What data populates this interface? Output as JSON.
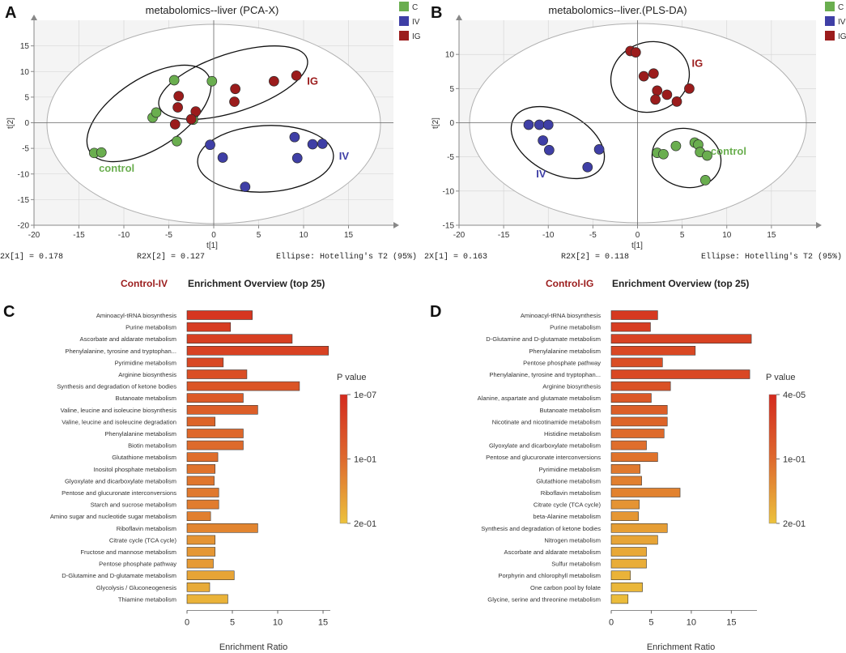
{
  "colors": {
    "control": "#6aae4f",
    "iv": "#3f3fa6",
    "ig": "#9b1c1c",
    "ellipse": "#b0b0b0",
    "grid": "#c8c8c8",
    "panel_title": "#9b1c1c",
    "bar_high": "#d42a1e",
    "bar_low": "#ecc23c",
    "axis": "#888888"
  },
  "chart_data": [
    {
      "id": "A",
      "letter": "A",
      "type": "scatter",
      "title": "metabolomics--liver (PCA-X)",
      "xlabel": "t[1]",
      "ylabel": "t[2]",
      "xlim": [
        -20,
        20
      ],
      "ylim": [
        -20,
        20
      ],
      "xticks": [
        -20,
        -15,
        -10,
        -5,
        0,
        5,
        10,
        15
      ],
      "yticks": [
        -20,
        -15,
        -10,
        -5,
        0,
        5,
        10,
        15
      ],
      "legend": [
        {
          "key": "C",
          "label": "C",
          "color": "#6aae4f"
        },
        {
          "key": "IV",
          "label": "IV",
          "color": "#3f3fa6"
        },
        {
          "key": "IG",
          "label": "IG",
          "color": "#9b1c1c"
        }
      ],
      "footer": {
        "r2x1": "2X[1] = 0.178",
        "r2x2": "R2X[2] = 0.127",
        "ellipse": "Ellipse: Hotelling's T2 (95%)"
      },
      "series": [
        {
          "name": "C",
          "color": "#6aae4f",
          "points": [
            [
              -13.3,
              -5.9
            ],
            [
              -12.5,
              -5.8
            ],
            [
              -6.8,
              1.0
            ],
            [
              -6.4,
              2.0
            ],
            [
              -4.4,
              8.3
            ],
            [
              -4.1,
              -3.6
            ],
            [
              -0.2,
              8.1
            ],
            [
              -2.3,
              0.6
            ]
          ]
        },
        {
          "name": "IV",
          "color": "#3f3fa6",
          "points": [
            [
              -0.4,
              -4.3
            ],
            [
              1.0,
              -6.8
            ],
            [
              3.5,
              -12.5
            ],
            [
              9.0,
              -2.8
            ],
            [
              9.3,
              -6.9
            ],
            [
              11.0,
              -4.2
            ],
            [
              12.1,
              -4.1
            ]
          ]
        },
        {
          "name": "IG",
          "color": "#9b1c1c",
          "points": [
            [
              -3.9,
              5.2
            ],
            [
              -4.0,
              3.0
            ],
            [
              -4.3,
              -0.3
            ],
            [
              -2.0,
              2.2
            ],
            [
              -2.5,
              0.7
            ],
            [
              2.4,
              6.6
            ],
            [
              2.3,
              4.1
            ],
            [
              6.7,
              8.1
            ],
            [
              9.2,
              9.2
            ]
          ]
        }
      ],
      "group_labels": [
        {
          "text": "control",
          "x": -10.8,
          "y": -9.6,
          "color": "#6aae4f"
        },
        {
          "text": "IG",
          "x": 11.0,
          "y": 7.4,
          "color": "#9b1c1c"
        },
        {
          "text": "IV",
          "x": 14.5,
          "y": -7.2,
          "color": "#3f3fa6"
        }
      ]
    },
    {
      "id": "B",
      "letter": "B",
      "type": "scatter",
      "title": "metabolomics--liver.(PLS-DA)",
      "xlabel": "t[1]",
      "ylabel": "t[2]",
      "xlim": [
        -20,
        20
      ],
      "ylim": [
        -15,
        15
      ],
      "xticks": [
        -20,
        -15,
        -10,
        -5,
        0,
        5,
        10,
        15
      ],
      "yticks": [
        -15,
        -10,
        -5,
        0,
        5,
        10
      ],
      "legend": [
        {
          "key": "C",
          "label": "C",
          "color": "#6aae4f"
        },
        {
          "key": "IV",
          "label": "IV",
          "color": "#3f3fa6"
        },
        {
          "key": "IG",
          "label": "IG",
          "color": "#9b1c1c"
        }
      ],
      "footer": {
        "r2x1": "2X[1] = 0.163",
        "r2x2": "R2X[2] = 0.118",
        "ellipse": "Ellipse: Hotelling's T2 (95%)"
      },
      "series": [
        {
          "name": "C",
          "color": "#6aae4f",
          "points": [
            [
              2.2,
              -4.4
            ],
            [
              2.9,
              -4.6
            ],
            [
              4.3,
              -3.4
            ],
            [
              6.4,
              -2.9
            ],
            [
              6.8,
              -3.2
            ],
            [
              7.0,
              -4.3
            ],
            [
              7.8,
              -4.8
            ],
            [
              7.6,
              -8.4
            ]
          ]
        },
        {
          "name": "IV",
          "color": "#3f3fa6",
          "points": [
            [
              -12.2,
              -0.3
            ],
            [
              -11.0,
              -0.3
            ],
            [
              -10.0,
              -0.3
            ],
            [
              -10.6,
              -2.6
            ],
            [
              -9.9,
              -4.0
            ],
            [
              -4.3,
              -3.9
            ],
            [
              -5.6,
              -6.5
            ]
          ]
        },
        {
          "name": "IG",
          "color": "#9b1c1c",
          "points": [
            [
              -0.8,
              10.5
            ],
            [
              -0.2,
              10.3
            ],
            [
              0.7,
              6.8
            ],
            [
              1.8,
              7.2
            ],
            [
              2.2,
              4.7
            ],
            [
              2.0,
              3.4
            ],
            [
              3.3,
              4.1
            ],
            [
              4.4,
              3.1
            ],
            [
              5.8,
              5.0
            ]
          ]
        }
      ],
      "group_labels": [
        {
          "text": "IG",
          "x": 6.7,
          "y": 8.2,
          "color": "#9b1c1c"
        },
        {
          "text": "control",
          "x": 10.2,
          "y": -4.7,
          "color": "#6aae4f"
        },
        {
          "text": "IV",
          "x": -10.8,
          "y": -8.0,
          "color": "#3f3fa6"
        }
      ]
    },
    {
      "id": "C",
      "letter": "C",
      "type": "bar",
      "orientation": "horizontal",
      "group_title": "Control-IV",
      "title": "Enrichment Overview (top 25)",
      "xlabel": "Enrichment Ratio",
      "xlim": [
        0,
        15.8
      ],
      "xticks": [
        0,
        5,
        10,
        15
      ],
      "colorbar": {
        "title": "P value",
        "labels": [
          "1e-07",
          "1e-01",
          "2e-01"
        ]
      },
      "categories": [
        "Aminoacyl-tRNA biosynthesis",
        "Purine metabolism",
        "Ascorbate and aldarate metabolism",
        "Phenylalanine, tyrosine and tryptophan...",
        "Pyrimidine metabolism",
        "Arginine biosynthesis",
        "Synthesis and degradation of ketone bodies",
        "Butanoate metabolism",
        "Valine, leucine and isoleucine biosynthesis",
        "Valine, leucine and isoleucine degradation",
        "Phenylalanine metabolism",
        "Biotin metabolism",
        "Glutathione metabolism",
        "Inositol phosphate metabolism",
        "Glyoxylate and dicarboxylate metabolism",
        "Pentose and glucuronate interconversions",
        "Starch and sucrose metabolism",
        "Amino sugar and nucleotide sugar metabolism",
        "Riboflavin metabolism",
        "Citrate cycle (TCA cycle)",
        "Fructose and mannose metabolism",
        "Pentose phosphate pathway",
        "D-Glutamine and D-glutamate metabolism",
        "Glycolysis / Gluconeogenesis",
        "Thiamine metabolism"
      ],
      "values": [
        7.2,
        4.8,
        11.6,
        15.6,
        4.0,
        6.6,
        12.4,
        6.2,
        7.8,
        3.1,
        6.2,
        6.2,
        3.4,
        3.1,
        3.0,
        3.5,
        3.5,
        2.6,
        7.8,
        3.1,
        3.1,
        2.9,
        5.2,
        2.5,
        4.5
      ],
      "color_levels": [
        0.08,
        0.12,
        0.14,
        0.16,
        0.2,
        0.24,
        0.28,
        0.32,
        0.34,
        0.38,
        0.4,
        0.42,
        0.45,
        0.48,
        0.5,
        0.52,
        0.54,
        0.56,
        0.6,
        0.7,
        0.72,
        0.74,
        0.8,
        0.85,
        0.9
      ]
    },
    {
      "id": "D",
      "letter": "D",
      "type": "bar",
      "orientation": "horizontal",
      "group_title": "Control-IG",
      "title": "Enrichment Overview (top 25)",
      "xlabel": "Enrichment Ratio",
      "xlim": [
        0,
        18.2
      ],
      "xticks": [
        0,
        5,
        10,
        15
      ],
      "colorbar": {
        "title": "P value",
        "labels": [
          "4e-05",
          "1e-01",
          "2e-01"
        ]
      },
      "categories": [
        "Aminoacyl-tRNA biosynthesis",
        "Purine metabolism",
        "D-Glutamine and D-glutamate metabolism",
        "Phenylalanine metabolism",
        "Pentose phosphate pathway",
        "Phenylalanine, tyrosine and tryptophan...",
        "Arginine biosynthesis",
        "Alanine, aspartate and glutamate metabolism",
        "Butanoate metabolism",
        "Nicotinate and nicotinamide metabolism",
        "Histidine metabolism",
        "Glyoxylate and dicarboxylate metabolism",
        "Pentose and glucuronate interconversions",
        "Pyrimidine metabolism",
        "Glutathione metabolism",
        "Riboflavin metabolism",
        "Citrate cycle (TCA cycle)",
        "beta-Alanine metabolism",
        "Synthesis and degradation of ketone bodies",
        "Nitrogen metabolism",
        "Ascorbate and aldarate metabolism",
        "Sulfur metabolism",
        "Porphyrin and chlorophyll metabolism",
        "One carbon pool by folate",
        "Glycine, serine and threonine metabolism"
      ],
      "values": [
        5.8,
        4.9,
        17.5,
        10.5,
        6.4,
        17.3,
        7.4,
        5.0,
        7.0,
        7.0,
        6.6,
        4.4,
        5.8,
        3.6,
        3.8,
        8.6,
        3.5,
        3.4,
        7.0,
        5.8,
        4.4,
        4.4,
        2.4,
        3.9,
        2.1
      ],
      "color_levels": [
        0.1,
        0.13,
        0.16,
        0.2,
        0.24,
        0.2,
        0.26,
        0.3,
        0.34,
        0.38,
        0.42,
        0.45,
        0.48,
        0.52,
        0.56,
        0.58,
        0.7,
        0.72,
        0.76,
        0.8,
        0.83,
        0.86,
        0.9,
        0.93,
        0.96
      ]
    }
  ]
}
